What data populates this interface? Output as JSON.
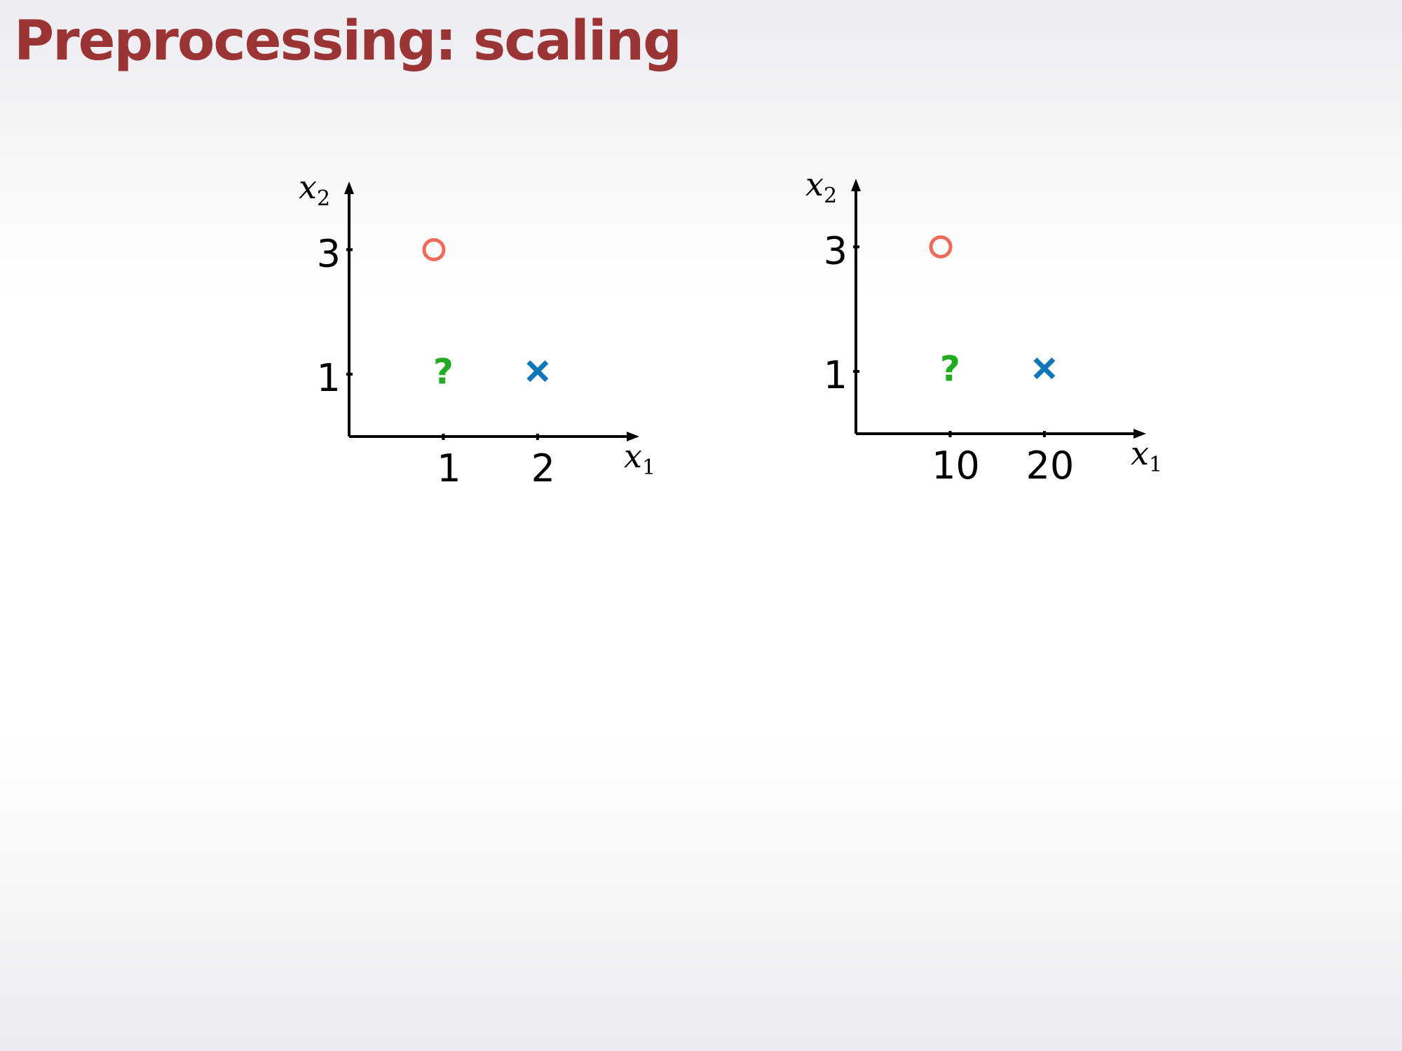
{
  "slide": {
    "title": "Preprocessing: scaling"
  },
  "chart_data": [
    {
      "type": "scatter",
      "xlabel": "x",
      "xlabel_sub": "1",
      "ylabel": "x",
      "ylabel_sub": "2",
      "xticks": [
        1,
        2
      ],
      "yticks": [
        1,
        3
      ],
      "xlim": [
        0,
        3.05
      ],
      "ylim": [
        0,
        4.05
      ],
      "points": [
        {
          "x": 0.9,
          "y": 3,
          "marker": "circle",
          "color": "#ee6b5a"
        },
        {
          "x": 1.0,
          "y": 1.05,
          "marker": "?",
          "color": "#22aa22"
        },
        {
          "x": 2.0,
          "y": 1.05,
          "marker": "x",
          "color": "#1176b8"
        }
      ]
    },
    {
      "type": "scatter",
      "xlabel": "x",
      "xlabel_sub": "1",
      "ylabel": "x",
      "ylabel_sub": "2",
      "xticks": [
        10,
        20
      ],
      "yticks": [
        1,
        3
      ],
      "xlim": [
        0,
        30.5
      ],
      "ylim": [
        0,
        4.05
      ],
      "points": [
        {
          "x": 9,
          "y": 3,
          "marker": "circle",
          "color": "#ee6b5a"
        },
        {
          "x": 10,
          "y": 1.05,
          "marker": "?",
          "color": "#22aa22"
        },
        {
          "x": 20,
          "y": 1.05,
          "marker": "x",
          "color": "#1176b8"
        }
      ]
    }
  ]
}
